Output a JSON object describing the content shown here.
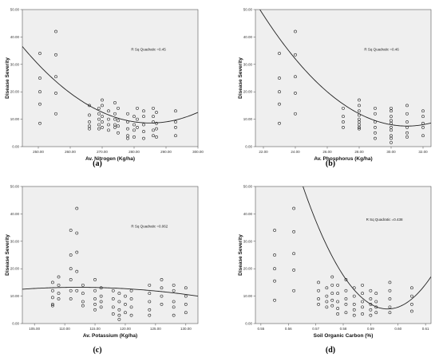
{
  "chart_data": [
    {
      "type": "scatter",
      "panel_label": "(a)",
      "xlabel": "Av. Nitrogen (Kg/ha)",
      "ylabel": "Disease Severity",
      "annotation": "R Sq Quadratic =0.45",
      "xlim": [
        245,
        300
      ],
      "ylim": [
        0,
        50
      ],
      "x_ticks": [
        "250.00",
        "260.00",
        "270.00",
        "280.00",
        "290.00",
        "300.00"
      ],
      "x_tick_values": [
        250,
        260,
        270,
        280,
        290,
        300
      ],
      "y_ticks": [
        "0.00",
        "10.00",
        "20.00",
        "30.00",
        "40.00",
        "50.00"
      ],
      "y_tick_values": [
        0,
        10,
        20,
        30,
        40,
        50
      ],
      "grid": false,
      "points": [
        [
          250.5,
          34
        ],
        [
          250.5,
          25
        ],
        [
          250.5,
          20
        ],
        [
          250.5,
          15.5
        ],
        [
          250.5,
          8.5
        ],
        [
          255.5,
          42
        ],
        [
          255.5,
          33.5
        ],
        [
          255.5,
          25.5
        ],
        [
          255.5,
          19.5
        ],
        [
          255.5,
          12
        ],
        [
          266,
          15
        ],
        [
          266,
          11.5
        ],
        [
          266,
          9
        ],
        [
          266,
          7.5
        ],
        [
          266,
          6.5
        ],
        [
          269,
          14
        ],
        [
          269,
          12
        ],
        [
          269,
          10
        ],
        [
          269,
          8
        ],
        [
          269,
          6.5
        ],
        [
          270,
          17
        ],
        [
          270,
          15
        ],
        [
          270,
          11
        ],
        [
          270,
          9
        ],
        [
          270,
          7
        ],
        [
          272,
          13
        ],
        [
          272,
          10
        ],
        [
          272,
          8
        ],
        [
          272,
          6
        ],
        [
          274,
          16
        ],
        [
          274,
          12
        ],
        [
          274,
          10
        ],
        [
          274,
          8
        ],
        [
          274,
          7
        ],
        [
          275,
          14
        ],
        [
          275,
          9.5
        ],
        [
          275,
          7.5
        ],
        [
          275,
          5
        ],
        [
          278,
          12
        ],
        [
          278,
          9
        ],
        [
          278,
          6.5
        ],
        [
          278,
          4
        ],
        [
          278,
          3
        ],
        [
          280,
          11
        ],
        [
          280,
          8
        ],
        [
          280,
          6
        ],
        [
          280,
          3.5
        ],
        [
          281,
          14
        ],
        [
          281,
          10
        ],
        [
          281,
          7
        ],
        [
          283,
          13
        ],
        [
          283,
          11
        ],
        [
          283,
          8
        ],
        [
          283,
          5.5
        ],
        [
          283,
          3
        ],
        [
          286,
          14
        ],
        [
          286,
          11
        ],
        [
          286,
          9
        ],
        [
          286,
          6
        ],
        [
          286,
          4
        ],
        [
          287,
          12.5
        ],
        [
          287,
          8.5
        ],
        [
          287,
          6.5
        ],
        [
          287,
          3.5
        ],
        [
          293,
          13
        ],
        [
          293,
          9
        ],
        [
          293,
          7
        ],
        [
          293,
          4
        ]
      ],
      "fit": {
        "label": "Quadratic fit",
        "coefficients": [
          0.0174,
          -9.92,
          1422.5
        ]
      }
    },
    {
      "type": "scatter",
      "panel_label": "(b)",
      "xlabel": "Av. Phosphorus (Kg/ha)",
      "ylabel": "Disease Severity",
      "annotation": "R Sq Quadratic =0.46",
      "xlim": [
        21.5,
        32.5
      ],
      "ylim": [
        0,
        50
      ],
      "x_ticks": [
        "22.00",
        "24.00",
        "26.00",
        "28.00",
        "30.00",
        "32.00"
      ],
      "x_tick_values": [
        22,
        24,
        26,
        28,
        30,
        32
      ],
      "y_ticks": [
        "0.00",
        "10.00",
        "20.00",
        "30.00",
        "40.00",
        "50.00"
      ],
      "y_tick_values": [
        0,
        10,
        20,
        30,
        40,
        50
      ],
      "grid": false,
      "points": [
        [
          23,
          34
        ],
        [
          23,
          25
        ],
        [
          23,
          20
        ],
        [
          23,
          15.5
        ],
        [
          23,
          8.5
        ],
        [
          24,
          42
        ],
        [
          24,
          33.5
        ],
        [
          24,
          25.5
        ],
        [
          24,
          19.5
        ],
        [
          24,
          12
        ],
        [
          27,
          14
        ],
        [
          27,
          11
        ],
        [
          27,
          9
        ],
        [
          27,
          7
        ],
        [
          28,
          17
        ],
        [
          28,
          15
        ],
        [
          28,
          13
        ],
        [
          28,
          11.5
        ],
        [
          28,
          10
        ],
        [
          28,
          9
        ],
        [
          28,
          8
        ],
        [
          28,
          7
        ],
        [
          28,
          6.5
        ],
        [
          29,
          14
        ],
        [
          29,
          12
        ],
        [
          29,
          9
        ],
        [
          29,
          7
        ],
        [
          29,
          5
        ],
        [
          29,
          3
        ],
        [
          30,
          14
        ],
        [
          30,
          13
        ],
        [
          30,
          11
        ],
        [
          30,
          9.5
        ],
        [
          30,
          8.5
        ],
        [
          30,
          7
        ],
        [
          30,
          6
        ],
        [
          30,
          4
        ],
        [
          30,
          3
        ],
        [
          30,
          1.5
        ],
        [
          31,
          15
        ],
        [
          31,
          12
        ],
        [
          31,
          9
        ],
        [
          31,
          7
        ],
        [
          31,
          5
        ],
        [
          31,
          3.5
        ],
        [
          32,
          13
        ],
        [
          32,
          11
        ],
        [
          32,
          8.5
        ],
        [
          32,
          7
        ],
        [
          32,
          4
        ]
      ],
      "fit": {
        "label": "Quadratic fit",
        "coefficients": [
          0.5,
          -31.0,
          488.0
        ]
      }
    },
    {
      "type": "scatter",
      "panel_label": "(c)",
      "xlabel": "Av. Potassium (Kg/ha)",
      "ylabel": "Disease Severity",
      "annotation": "R Sq Quadratic =0.062",
      "xlim": [
        103,
        132
      ],
      "ylim": [
        0,
        50
      ],
      "x_ticks": [
        "105.00",
        "110.00",
        "115.00",
        "120.00",
        "125.00",
        "130.00"
      ],
      "x_tick_values": [
        105,
        110,
        115,
        120,
        125,
        130
      ],
      "y_ticks": [
        "0.00",
        "10.00",
        "20.00",
        "30.00",
        "40.00",
        "50.00"
      ],
      "y_tick_values": [
        0,
        10,
        20,
        30,
        40,
        50
      ],
      "grid": false,
      "points": [
        [
          108,
          15
        ],
        [
          108,
          12
        ],
        [
          108,
          9.5
        ],
        [
          108,
          7
        ],
        [
          108,
          6.5
        ],
        [
          109,
          17
        ],
        [
          109,
          14
        ],
        [
          109,
          11
        ],
        [
          109,
          9
        ],
        [
          111,
          34
        ],
        [
          111,
          25
        ],
        [
          111,
          20
        ],
        [
          111,
          16
        ],
        [
          111,
          12
        ],
        [
          111,
          9
        ],
        [
          112,
          42
        ],
        [
          112,
          33
        ],
        [
          112,
          26
        ],
        [
          112,
          19
        ],
        [
          112,
          12
        ],
        [
          113,
          14
        ],
        [
          113,
          11
        ],
        [
          113,
          8
        ],
        [
          113,
          6.5
        ],
        [
          115,
          16
        ],
        [
          115,
          12
        ],
        [
          115,
          9
        ],
        [
          115,
          7
        ],
        [
          115,
          5
        ],
        [
          116,
          13
        ],
        [
          116,
          10
        ],
        [
          116,
          8
        ],
        [
          116,
          6
        ],
        [
          118,
          12
        ],
        [
          118,
          9
        ],
        [
          118,
          6
        ],
        [
          118,
          3.5
        ],
        [
          119,
          11
        ],
        [
          119,
          8
        ],
        [
          119,
          5
        ],
        [
          119,
          3
        ],
        [
          119,
          1.5
        ],
        [
          120,
          10
        ],
        [
          120,
          7
        ],
        [
          120,
          4
        ],
        [
          121,
          12
        ],
        [
          121,
          9
        ],
        [
          121,
          6
        ],
        [
          121,
          3
        ],
        [
          124,
          14
        ],
        [
          124,
          11
        ],
        [
          124,
          8
        ],
        [
          124,
          5
        ],
        [
          124,
          3
        ],
        [
          126,
          16
        ],
        [
          126,
          13
        ],
        [
          126,
          10
        ],
        [
          126,
          7
        ],
        [
          128,
          14
        ],
        [
          128,
          12
        ],
        [
          128,
          8
        ],
        [
          128,
          6
        ],
        [
          128,
          3
        ],
        [
          130,
          13
        ],
        [
          130,
          10
        ],
        [
          130,
          7
        ],
        [
          130,
          4
        ]
      ],
      "fit": {
        "label": "Quadratic fit",
        "coefficients": [
          -0.0082,
          1.84,
          -90.0
        ]
      }
    },
    {
      "type": "scatter",
      "panel_label": "(d)",
      "xlabel": "Soil Organic Carbon (%)",
      "ylabel": "Disease Severity",
      "annotation": "R Sq Quadratic =0.438",
      "xlim": [
        0.548,
        0.612
      ],
      "ylim": [
        0,
        50
      ],
      "x_ticks": [
        "0.55",
        "0.56",
        "0.57",
        "0.58",
        "0.59",
        "0.60",
        "0.61"
      ],
      "x_tick_values": [
        0.55,
        0.56,
        0.57,
        0.58,
        0.59,
        0.6,
        0.61
      ],
      "y_ticks": [
        "0.00",
        "10.00",
        "20.00",
        "30.00",
        "40.00",
        "50.00"
      ],
      "y_tick_values": [
        0,
        10,
        20,
        30,
        40,
        50
      ],
      "grid": false,
      "points": [
        [
          0.555,
          34
        ],
        [
          0.555,
          25
        ],
        [
          0.555,
          20
        ],
        [
          0.555,
          15.5
        ],
        [
          0.555,
          8.5
        ],
        [
          0.562,
          42
        ],
        [
          0.562,
          33.5
        ],
        [
          0.562,
          25.5
        ],
        [
          0.562,
          19.5
        ],
        [
          0.562,
          12
        ],
        [
          0.571,
          15
        ],
        [
          0.571,
          12
        ],
        [
          0.571,
          9
        ],
        [
          0.571,
          7
        ],
        [
          0.574,
          13
        ],
        [
          0.574,
          10
        ],
        [
          0.574,
          8
        ],
        [
          0.574,
          6
        ],
        [
          0.576,
          17
        ],
        [
          0.576,
          14
        ],
        [
          0.576,
          11
        ],
        [
          0.576,
          8.5
        ],
        [
          0.576,
          6.5
        ],
        [
          0.578,
          14
        ],
        [
          0.578,
          11
        ],
        [
          0.578,
          8
        ],
        [
          0.578,
          5.5
        ],
        [
          0.578,
          3.5
        ],
        [
          0.581,
          16
        ],
        [
          0.581,
          12
        ],
        [
          0.581,
          9
        ],
        [
          0.581,
          7
        ],
        [
          0.581,
          4
        ],
        [
          0.584,
          13
        ],
        [
          0.584,
          10
        ],
        [
          0.584,
          7
        ],
        [
          0.584,
          5
        ],
        [
          0.584,
          3
        ],
        [
          0.587,
          14
        ],
        [
          0.587,
          11
        ],
        [
          0.587,
          8
        ],
        [
          0.587,
          6
        ],
        [
          0.587,
          3.5
        ],
        [
          0.59,
          12
        ],
        [
          0.59,
          9
        ],
        [
          0.59,
          7
        ],
        [
          0.59,
          5
        ],
        [
          0.59,
          3
        ],
        [
          0.592,
          11
        ],
        [
          0.592,
          8
        ],
        [
          0.592,
          6
        ],
        [
          0.592,
          4
        ],
        [
          0.597,
          15
        ],
        [
          0.597,
          12
        ],
        [
          0.597,
          9
        ],
        [
          0.597,
          6
        ],
        [
          0.597,
          4
        ],
        [
          0.605,
          13
        ],
        [
          0.605,
          10
        ],
        [
          0.605,
          7
        ],
        [
          0.605,
          4.5
        ]
      ],
      "fit": {
        "label": "Quadratic fit",
        "coefficients": [
          47000,
          -56040,
          16710
        ]
      }
    }
  ]
}
